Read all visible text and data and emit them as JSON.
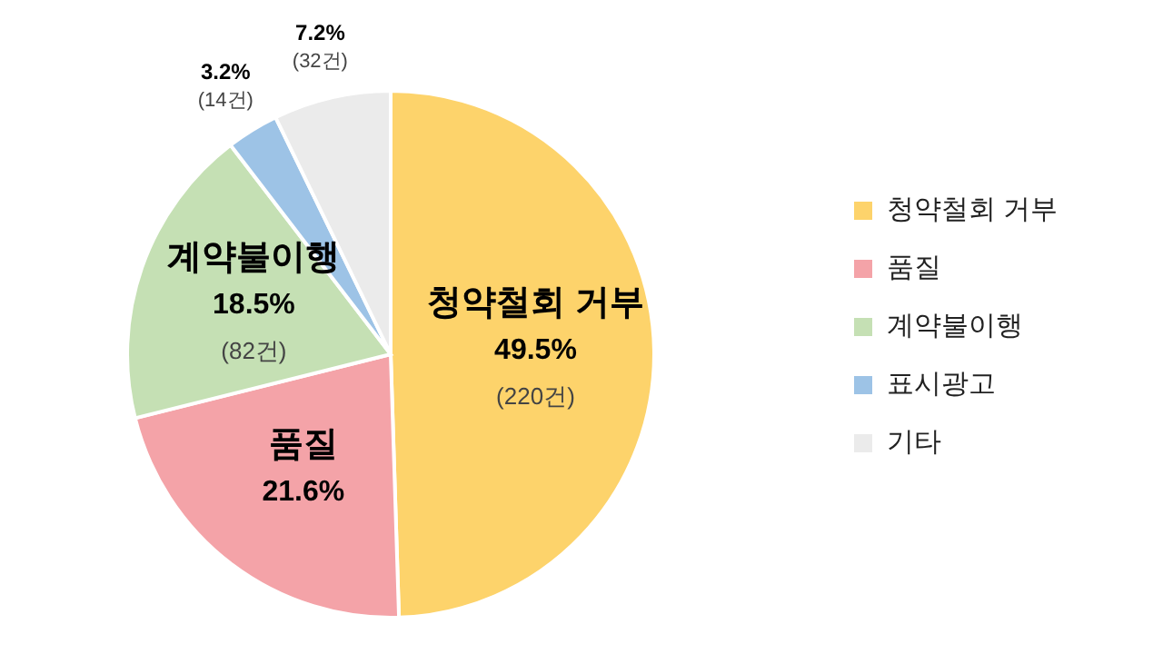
{
  "chart_data": {
    "type": "pie",
    "categories": [
      "청약철회 거부",
      "품질",
      "계약불이행",
      "표시광고",
      "기타"
    ],
    "values": [
      49.5,
      21.6,
      18.5,
      3.2,
      7.2
    ],
    "colors": [
      "#fdd36b",
      "#f4a3a8",
      "#c5e0b4",
      "#9dc3e6",
      "#ebebeb"
    ],
    "value_labels": [
      "49.5%",
      "21.6%",
      "18.5%",
      "3.2%",
      "7.2%"
    ],
    "annotations": [
      {
        "text": "(220건)",
        "x": "청약철회 거부"
      },
      {
        "text": "(82건)",
        "x": "계약불이행"
      },
      {
        "text": "(14건)",
        "x": "표시광고"
      },
      {
        "text": "(32건)",
        "x": "기타"
      }
    ],
    "legend": "right"
  }
}
